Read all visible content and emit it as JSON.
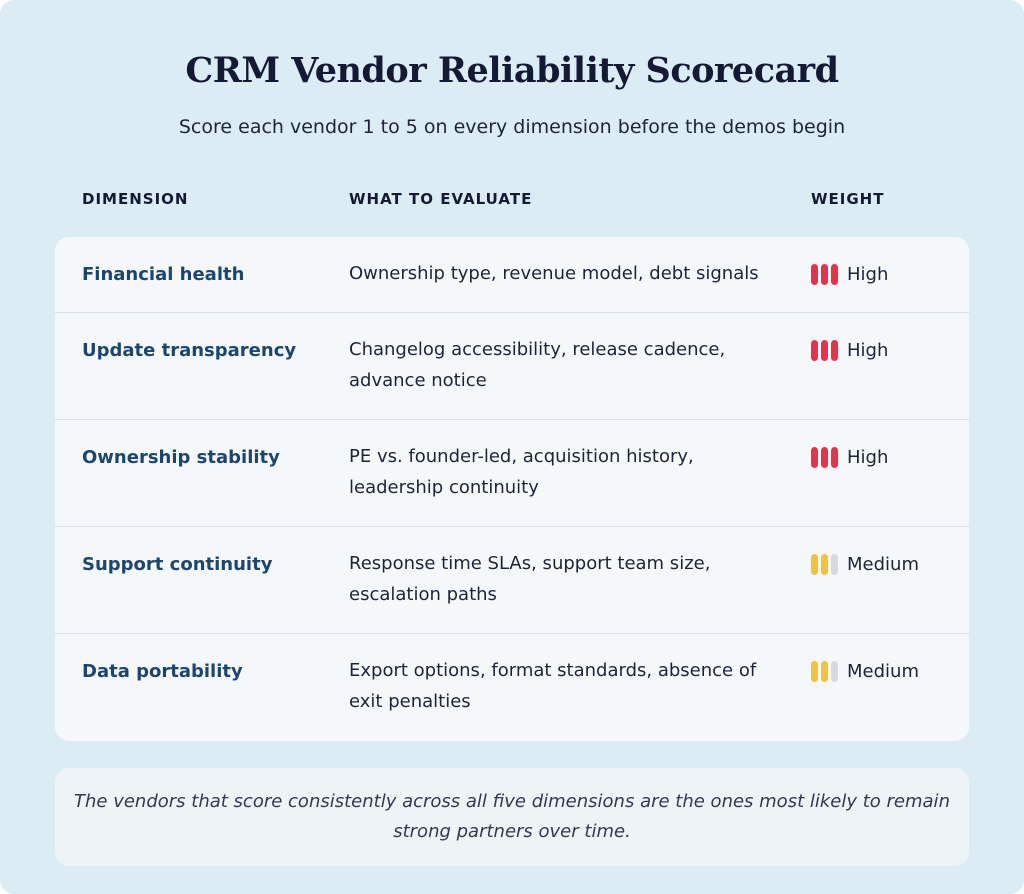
{
  "title": "CRM Vendor Reliability Scorecard",
  "subtitle": "Score each vendor 1 to 5 on every dimension before the demos begin",
  "columns": {
    "dimension": "DIMENSION",
    "evaluate": "WHAT TO EVALUATE",
    "weight": "WEIGHT"
  },
  "colors": {
    "high": "#e8324a",
    "medium": "#f3c335",
    "inactive": "#d6dadf"
  },
  "rows": [
    {
      "dimension": "Financial health",
      "evaluate": "Ownership type, revenue model, debt signals",
      "weight": "High",
      "level": 3
    },
    {
      "dimension": "Update transparency",
      "evaluate": "Changelog accessibility, release cadence, advance notice",
      "weight": "High",
      "level": 3
    },
    {
      "dimension": "Ownership stability",
      "evaluate": "PE vs. founder-led, acquisition history, leadership continuity",
      "weight": "High",
      "level": 3
    },
    {
      "dimension": "Support continuity",
      "evaluate": "Response time SLAs, support team size, escalation paths",
      "weight": "Medium",
      "level": 2
    },
    {
      "dimension": "Data portability",
      "evaluate": "Export options, format standards, absence of exit penalties",
      "weight": "Medium",
      "level": 2
    }
  ],
  "note": "The vendors that score consistently across all five dimensions are the ones most likely to remain strong partners over time."
}
